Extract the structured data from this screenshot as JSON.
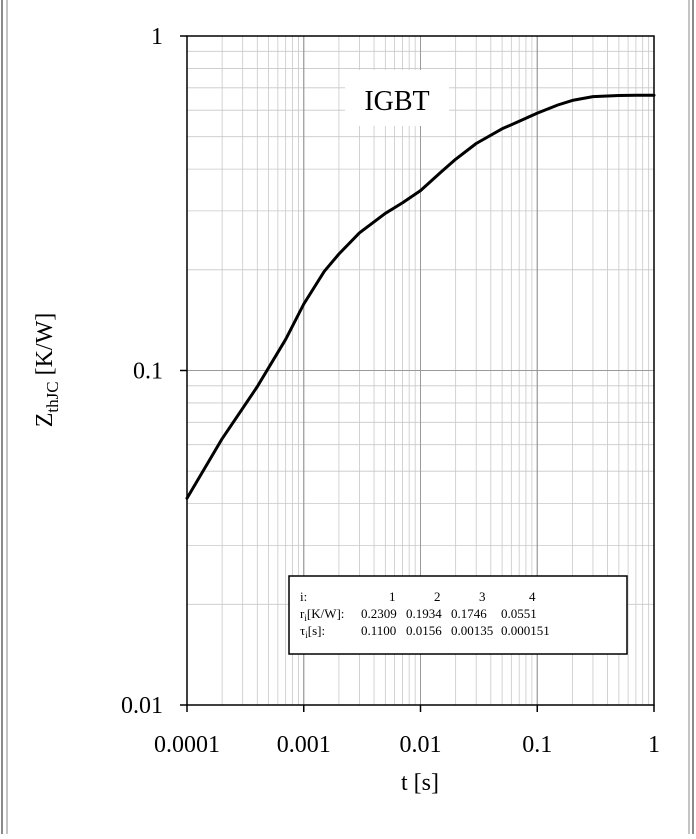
{
  "chart_data": {
    "type": "line",
    "title": "IGBT",
    "xlabel": "t [s]",
    "ylabel": {
      "main": "Z",
      "sub": "thJC",
      "unit": " [K/W]"
    },
    "xscale": "log",
    "yscale": "log",
    "xlim": [
      0.0001,
      1
    ],
    "ylim": [
      0.01,
      1
    ],
    "grid": true,
    "x_tick_labels": [
      "0.0001",
      "0.001",
      "0.01",
      "0.1",
      "1"
    ],
    "y_tick_labels": [
      "0.01",
      "0.1",
      "1"
    ],
    "series": [
      {
        "x": [
          0.0001,
          0.0002,
          0.0004,
          0.0007,
          0.001,
          0.0015,
          0.002,
          0.003,
          0.005,
          0.007,
          0.01,
          0.015,
          0.02,
          0.03,
          0.05,
          0.07,
          0.1,
          0.15,
          0.2,
          0.3,
          0.5,
          0.7,
          1
        ],
        "y": [
          0.0415,
          0.0625,
          0.0895,
          0.124,
          0.158,
          0.198,
          0.223,
          0.258,
          0.295,
          0.317,
          0.345,
          0.392,
          0.428,
          0.477,
          0.528,
          0.556,
          0.588,
          0.622,
          0.642,
          0.659,
          0.664,
          0.665,
          0.665
        ]
      }
    ],
    "table": {
      "rows": [
        {
          "label_main": "i:",
          "label_sub": "",
          "label_tail": "",
          "values": [
            "1",
            "2",
            "3",
            "4"
          ]
        },
        {
          "label_main": "r",
          "label_sub": "i",
          "label_tail": "[K/W]:",
          "values": [
            "0.2309",
            "0.1934",
            "0.1746",
            "0.0551"
          ]
        },
        {
          "label_main": "τ",
          "label_sub": "i",
          "label_tail": "[s]:",
          "values": [
            "0.1100",
            "0.0156",
            "0.00135",
            "0.000151"
          ]
        }
      ]
    }
  }
}
